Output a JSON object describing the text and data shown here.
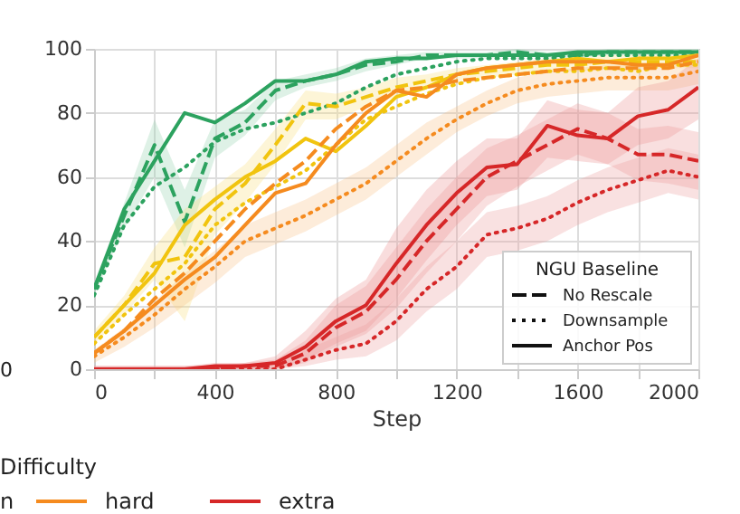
{
  "chart_data": {
    "type": "line",
    "xlabel": "Step",
    "x": [
      0,
      100,
      200,
      300,
      400,
      500,
      600,
      700,
      800,
      900,
      1000,
      1100,
      1200,
      1300,
      1400,
      1500,
      1600,
      1700,
      1800,
      1900,
      2000
    ],
    "xlim": [
      0,
      2000
    ],
    "ylim": [
      0,
      100
    ],
    "xticks": [
      0,
      {
        "value": 200,
        "label": null
      },
      400,
      {
        "value": 600,
        "label": null
      },
      800,
      {
        "value": 1000,
        "label": null
      },
      1200,
      {
        "value": 1400,
        "label": null
      },
      1600,
      {
        "value": 1800,
        "label": null
      },
      2000
    ],
    "yticks": [
      0,
      20,
      40,
      60,
      80,
      100
    ],
    "grid": true,
    "series": [
      {
        "color": "#2ca25f",
        "line_style": "solid",
        "values": [
          25,
          50,
          65,
          80,
          77,
          83,
          90,
          90,
          92,
          96,
          97,
          97,
          98,
          98,
          98,
          98,
          99,
          99,
          99,
          99,
          99
        ]
      },
      {
        "color": "#2ca25f",
        "line_style": "dashed",
        "values": [
          25,
          48,
          70,
          46,
          72,
          77,
          87,
          90,
          92,
          95,
          96,
          98,
          98,
          98,
          99,
          98,
          98,
          99,
          99,
          99,
          99
        ],
        "lower": [
          23,
          44,
          60,
          38,
          66,
          73,
          84,
          88,
          90,
          93,
          95,
          97,
          97,
          97,
          98,
          97,
          97,
          98,
          98,
          98,
          98
        ],
        "upper": [
          27,
          52,
          78,
          56,
          78,
          81,
          90,
          92,
          94,
          97,
          98,
          99,
          99,
          99,
          100,
          99,
          99,
          100,
          100,
          100,
          100
        ]
      },
      {
        "color": "#2ca25f",
        "line_style": "dotted",
        "values": [
          23,
          45,
          57,
          63,
          71,
          75,
          77,
          80,
          83,
          88,
          92,
          94,
          96,
          97,
          97,
          97,
          98,
          98,
          98,
          98,
          98
        ]
      },
      {
        "color": "#f1c40f",
        "line_style": "solid",
        "values": [
          10,
          20,
          30,
          45,
          53,
          60,
          65,
          72,
          68,
          76,
          85,
          88,
          92,
          94,
          95,
          96,
          97,
          96,
          97,
          97,
          98
        ]
      },
      {
        "color": "#f1c40f",
        "line_style": "dashed",
        "values": [
          10,
          20,
          33,
          35,
          50,
          58,
          70,
          83,
          82,
          85,
          88,
          90,
          92,
          93,
          94,
          95,
          95,
          96,
          96,
          96,
          96
        ],
        "lower": [
          8,
          17,
          28,
          15,
          42,
          52,
          64,
          78,
          78,
          82,
          85,
          88,
          90,
          91,
          92,
          93,
          93,
          94,
          94,
          94,
          94
        ],
        "upper": [
          12,
          23,
          38,
          50,
          57,
          64,
          75,
          87,
          86,
          88,
          91,
          92,
          94,
          95,
          96,
          97,
          97,
          98,
          98,
          98,
          98
        ]
      },
      {
        "color": "#f1c40f",
        "line_style": "dotted",
        "values": [
          8,
          17,
          25,
          33,
          45,
          52,
          57,
          62,
          70,
          78,
          82,
          86,
          89,
          91,
          92,
          93,
          93,
          94,
          93,
          95,
          95
        ]
      },
      {
        "name": "hard",
        "color": "#f58b1f",
        "line_style": "solid",
        "values": [
          5,
          12,
          20,
          28,
          35,
          45,
          55,
          58,
          70,
          80,
          87,
          85,
          92,
          94,
          95,
          96,
          96,
          96,
          95,
          95,
          98
        ]
      },
      {
        "color": "#f58b1f",
        "line_style": "dashed",
        "values": [
          5,
          12,
          22,
          30,
          40,
          50,
          58,
          65,
          75,
          82,
          87,
          88,
          90,
          91,
          92,
          93,
          94,
          94,
          94,
          94,
          96
        ]
      },
      {
        "color": "#f58b1f",
        "line_style": "dotted",
        "values": [
          4,
          10,
          17,
          25,
          32,
          40,
          44,
          48,
          53,
          58,
          65,
          72,
          78,
          83,
          87,
          89,
          90,
          91,
          91,
          91,
          93
        ],
        "lower": [
          2,
          7,
          13,
          20,
          27,
          35,
          39,
          43,
          48,
          53,
          60,
          67,
          74,
          79,
          83,
          85,
          86,
          87,
          87,
          87,
          89
        ],
        "upper": [
          6,
          13,
          21,
          30,
          37,
          45,
          49,
          53,
          58,
          63,
          70,
          77,
          82,
          87,
          91,
          93,
          94,
          95,
          95,
          95,
          97
        ]
      },
      {
        "name": "extra",
        "color": "#d62728",
        "line_style": "solid",
        "values": [
          0,
          0,
          0,
          0,
          1,
          1,
          2,
          7,
          15,
          20,
          33,
          45,
          55,
          63,
          64,
          76,
          73,
          72,
          79,
          81,
          88
        ],
        "lower": [
          0,
          0,
          0,
          0,
          0,
          0,
          0,
          3,
          8,
          12,
          22,
          34,
          45,
          54,
          56,
          66,
          65,
          64,
          70,
          72,
          78
        ],
        "upper": [
          1,
          1,
          1,
          1,
          2,
          2,
          4,
          12,
          22,
          28,
          44,
          56,
          65,
          72,
          72,
          84,
          81,
          80,
          88,
          90,
          97
        ]
      },
      {
        "color": "#d62728",
        "line_style": "dashed",
        "values": [
          0,
          0,
          0,
          0,
          0,
          1,
          1,
          5,
          13,
          18,
          28,
          40,
          50,
          60,
          65,
          70,
          75,
          72,
          67,
          67,
          65
        ],
        "lower": [
          0,
          0,
          0,
          0,
          0,
          0,
          0,
          2,
          7,
          11,
          19,
          30,
          40,
          51,
          57,
          62,
          67,
          64,
          59,
          58,
          56
        ],
        "upper": [
          1,
          1,
          1,
          1,
          1,
          2,
          3,
          9,
          20,
          26,
          38,
          50,
          60,
          69,
          73,
          78,
          83,
          80,
          75,
          76,
          74
        ]
      },
      {
        "color": "#d62728",
        "line_style": "dotted",
        "values": [
          0,
          0,
          0,
          0,
          0,
          0,
          0,
          3,
          6,
          8,
          15,
          25,
          32,
          42,
          44,
          47,
          52,
          56,
          59,
          62,
          60
        ],
        "lower": [
          0,
          0,
          0,
          0,
          0,
          0,
          0,
          1,
          3,
          4,
          9,
          18,
          25,
          35,
          37,
          40,
          45,
          49,
          52,
          55,
          53
        ],
        "upper": [
          1,
          1,
          1,
          1,
          1,
          1,
          1,
          6,
          10,
          14,
          22,
          32,
          40,
          49,
          51,
          54,
          59,
          63,
          66,
          69,
          67
        ]
      }
    ],
    "legend": "bottom",
    "legend_title": "Difficulty",
    "annotations": [
      "0",
      "NGU Baseline",
      "No Rescale",
      "Downsample",
      "Anchor Pos",
      "n"
    ]
  }
}
